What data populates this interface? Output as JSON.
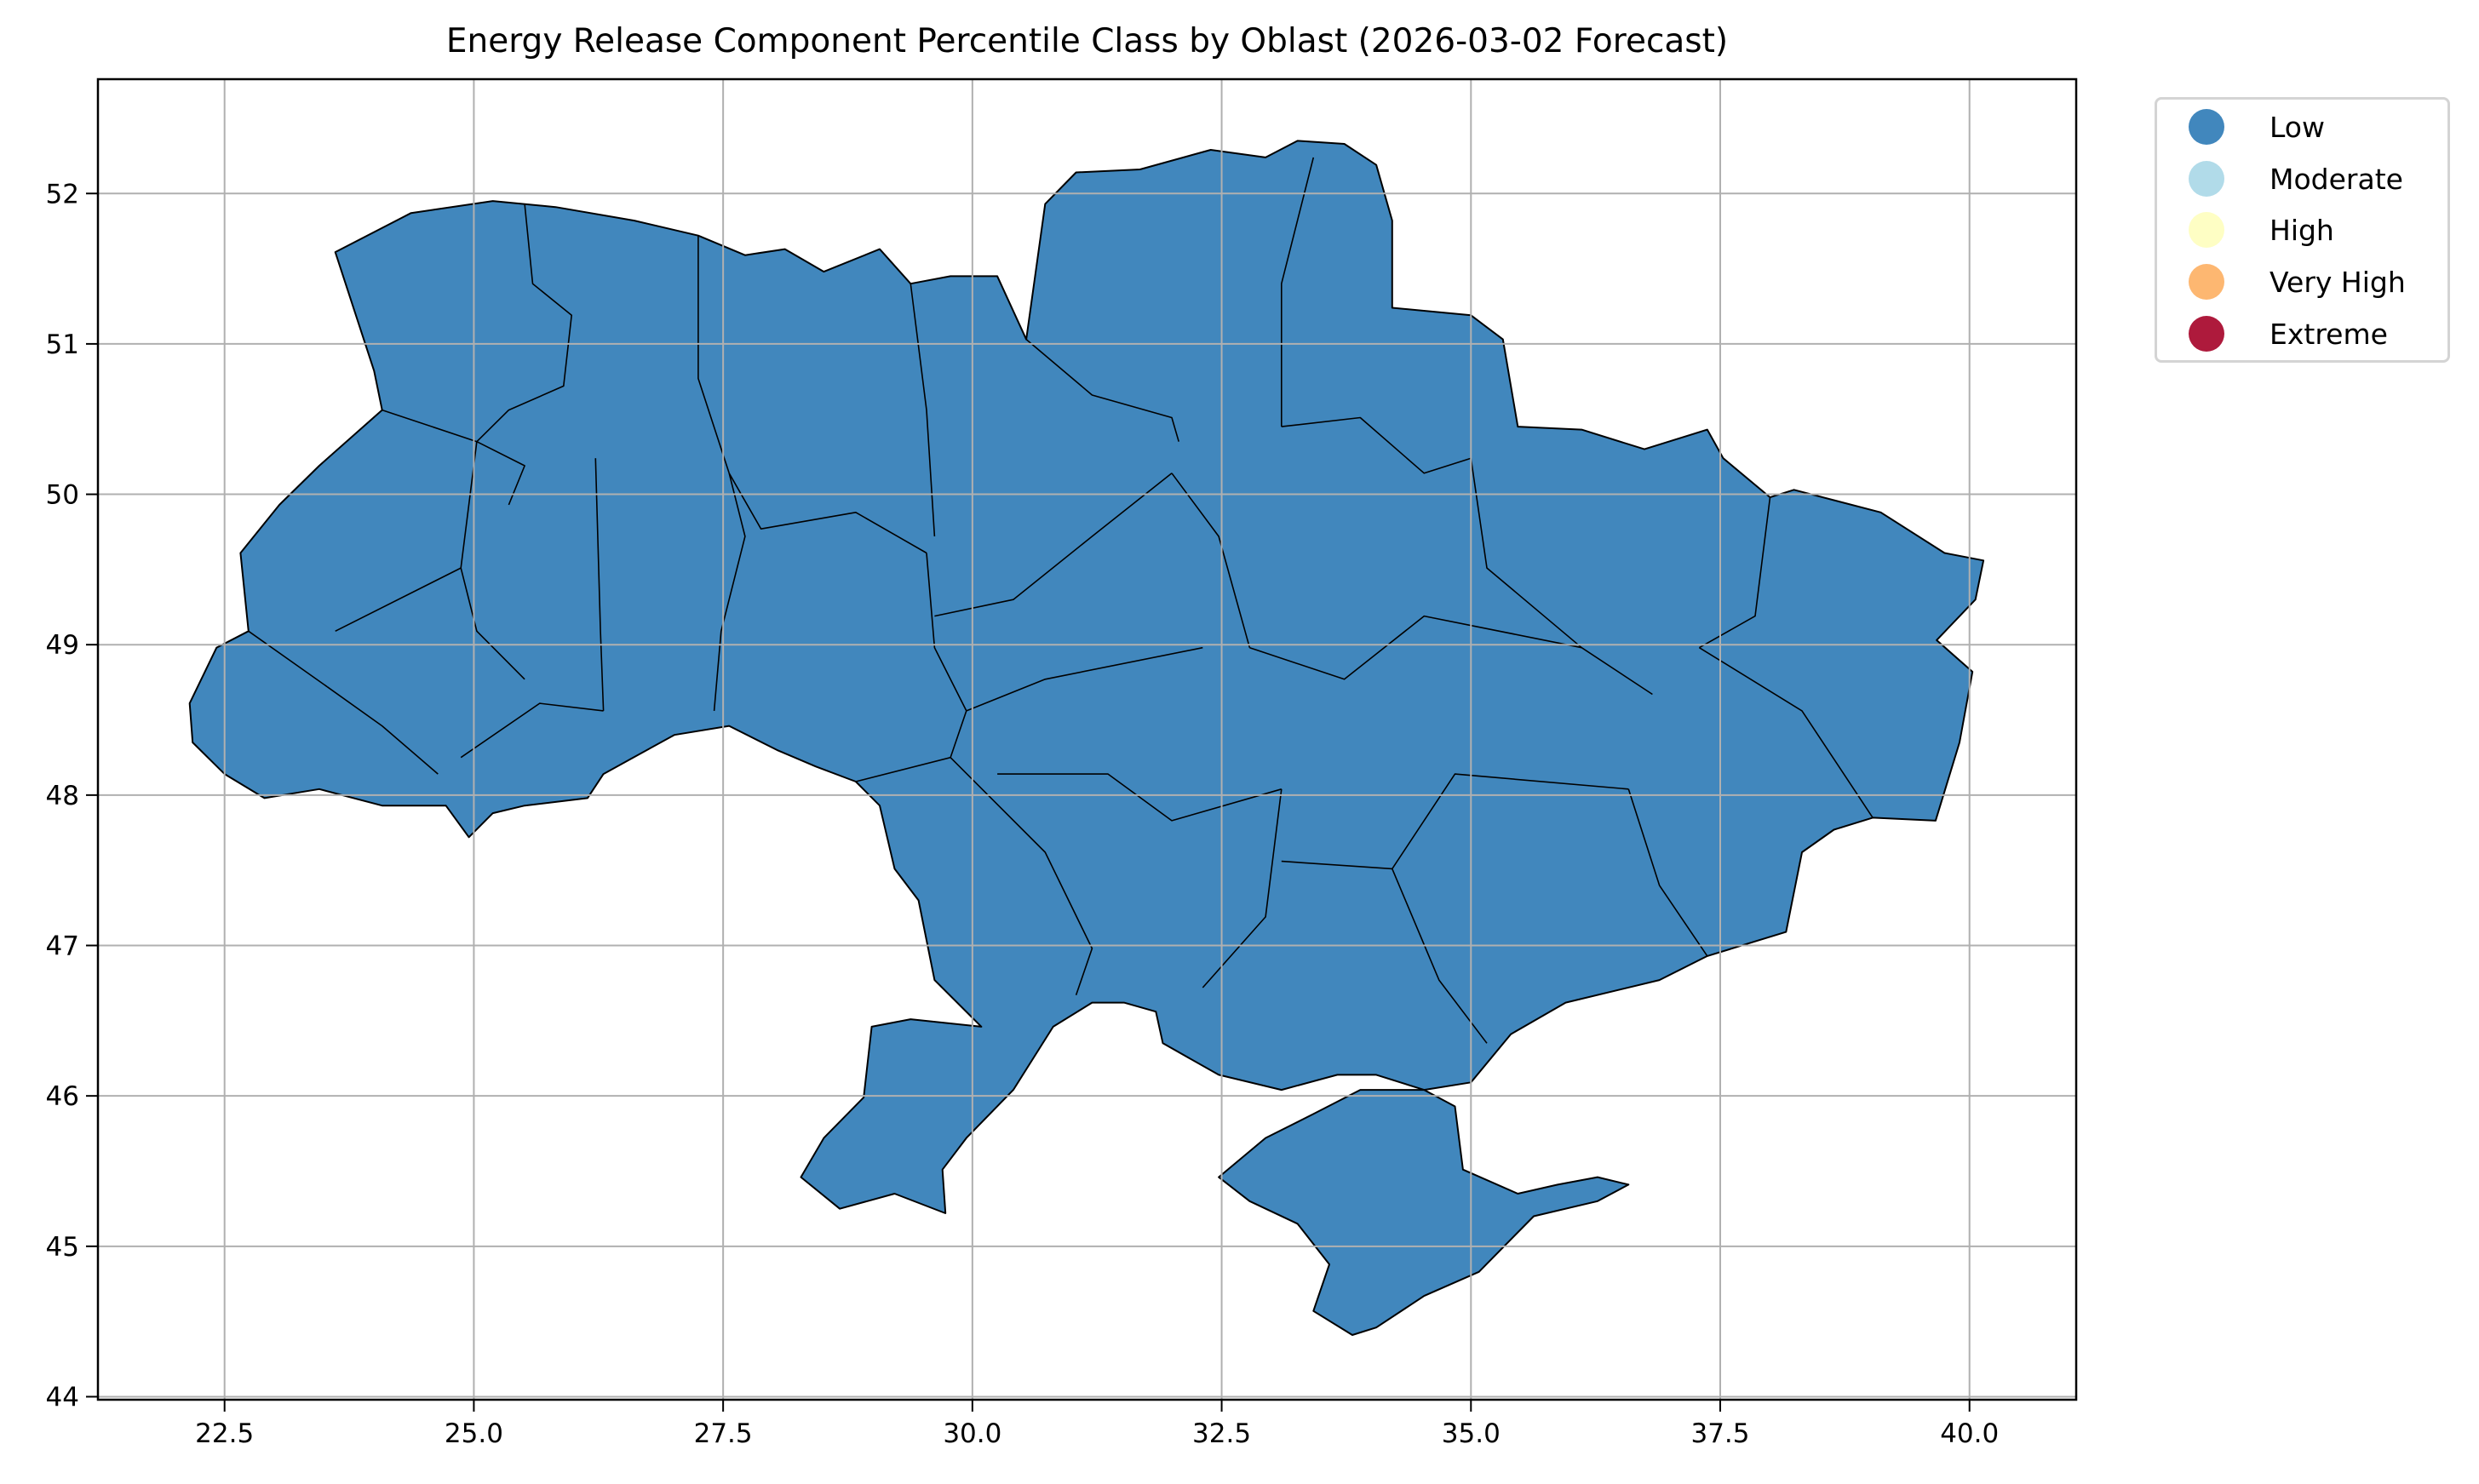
{
  "chart_data": {
    "type": "choropleth",
    "title": "Energy Release Component Percentile Class by Oblast (2026-03-02 Forecast)",
    "xlabel": "",
    "ylabel": "",
    "xlim": [
      21.23,
      41.07
    ],
    "ylim": [
      43.98,
      52.76
    ],
    "x_ticks": [
      "22.5",
      "25.0",
      "27.5",
      "30.0",
      "32.5",
      "35.0",
      "37.5",
      "40.0"
    ],
    "y_ticks": [
      "44",
      "45",
      "46",
      "47",
      "48",
      "49",
      "50",
      "51",
      "52"
    ],
    "grid": true,
    "legend_position": "outside top-right",
    "legend": [
      {
        "label": "Low",
        "color": "#4187bd"
      },
      {
        "label": "Moderate",
        "color": "#b1dbe9"
      },
      {
        "label": "High",
        "color": "#fefec4"
      },
      {
        "label": "Very High",
        "color": "#fdb771"
      },
      {
        "label": "Extreme",
        "color": "#ae1a3c"
      }
    ],
    "all_regions_class": "Low",
    "mainland_outline": [
      [
        23.61,
        51.61
      ],
      [
        24.37,
        51.87
      ],
      [
        25.19,
        51.95
      ],
      [
        25.82,
        51.91
      ],
      [
        26.61,
        51.82
      ],
      [
        27.25,
        51.72
      ],
      [
        27.72,
        51.59
      ],
      [
        28.12,
        51.63
      ],
      [
        28.51,
        51.48
      ],
      [
        29.07,
        51.63
      ],
      [
        29.38,
        51.4
      ],
      [
        29.78,
        51.45
      ],
      [
        30.25,
        51.45
      ],
      [
        30.54,
        51.03
      ],
      [
        30.73,
        51.93
      ],
      [
        31.04,
        52.14
      ],
      [
        31.68,
        52.16
      ],
      [
        32.39,
        52.29
      ],
      [
        32.94,
        52.24
      ],
      [
        33.26,
        52.35
      ],
      [
        33.73,
        52.33
      ],
      [
        34.05,
        52.19
      ],
      [
        34.21,
        51.82
      ],
      [
        34.21,
        51.24
      ],
      [
        35.0,
        51.19
      ],
      [
        35.32,
        51.03
      ],
      [
        35.47,
        50.45
      ],
      [
        36.11,
        50.43
      ],
      [
        36.74,
        50.3
      ],
      [
        37.37,
        50.43
      ],
      [
        37.53,
        50.24
      ],
      [
        38.0,
        49.98
      ],
      [
        38.24,
        50.03
      ],
      [
        39.11,
        49.88
      ],
      [
        39.75,
        49.61
      ],
      [
        40.14,
        49.56
      ],
      [
        40.06,
        49.3
      ],
      [
        39.67,
        49.03
      ],
      [
        40.03,
        48.82
      ],
      [
        39.9,
        48.35
      ],
      [
        39.66,
        47.83
      ],
      [
        39.03,
        47.85
      ],
      [
        38.64,
        47.77
      ],
      [
        38.32,
        47.62
      ],
      [
        38.16,
        47.09
      ],
      [
        37.37,
        46.93
      ],
      [
        36.89,
        46.77
      ],
      [
        35.95,
        46.62
      ],
      [
        35.4,
        46.41
      ],
      [
        35.0,
        46.09
      ],
      [
        34.53,
        46.04
      ],
      [
        34.05,
        46.14
      ],
      [
        33.66,
        46.14
      ],
      [
        33.1,
        46.04
      ],
      [
        32.47,
        46.14
      ],
      [
        31.91,
        46.35
      ],
      [
        31.84,
        46.56
      ],
      [
        31.52,
        46.62
      ],
      [
        31.2,
        46.62
      ],
      [
        30.81,
        46.46
      ],
      [
        30.41,
        46.04
      ],
      [
        29.94,
        45.72
      ],
      [
        29.7,
        45.51
      ],
      [
        29.73,
        45.22
      ],
      [
        29.22,
        45.35
      ],
      [
        28.67,
        45.25
      ],
      [
        28.28,
        45.46
      ],
      [
        28.51,
        45.72
      ],
      [
        28.91,
        45.99
      ],
      [
        28.99,
        46.46
      ],
      [
        29.38,
        46.51
      ],
      [
        30.09,
        46.46
      ],
      [
        29.62,
        46.77
      ],
      [
        29.46,
        47.3
      ],
      [
        29.22,
        47.51
      ],
      [
        29.07,
        47.93
      ],
      [
        28.83,
        48.09
      ],
      [
        28.43,
        48.19
      ],
      [
        28.04,
        48.3
      ],
      [
        27.56,
        48.46
      ],
      [
        27.01,
        48.4
      ],
      [
        26.3,
        48.14
      ],
      [
        26.14,
        47.98
      ],
      [
        25.51,
        47.93
      ],
      [
        25.19,
        47.88
      ],
      [
        24.95,
        47.72
      ],
      [
        24.72,
        47.93
      ],
      [
        24.08,
        47.93
      ],
      [
        23.45,
        48.04
      ],
      [
        22.9,
        47.98
      ],
      [
        22.5,
        48.14
      ],
      [
        22.18,
        48.35
      ],
      [
        22.15,
        48.61
      ],
      [
        22.42,
        48.98
      ],
      [
        22.74,
        49.09
      ],
      [
        22.66,
        49.61
      ],
      [
        23.05,
        49.93
      ],
      [
        23.45,
        50.19
      ],
      [
        24.08,
        50.56
      ],
      [
        24.0,
        50.82
      ]
    ],
    "crimea_outline": [
      [
        32.47,
        45.46
      ],
      [
        32.94,
        45.72
      ],
      [
        33.42,
        45.88
      ],
      [
        33.89,
        46.04
      ],
      [
        34.53,
        46.04
      ],
      [
        34.84,
        45.93
      ],
      [
        34.92,
        45.51
      ],
      [
        35.47,
        45.35
      ],
      [
        35.87,
        45.41
      ],
      [
        36.27,
        45.46
      ],
      [
        36.58,
        45.41
      ],
      [
        36.27,
        45.3
      ],
      [
        35.63,
        45.2
      ],
      [
        35.08,
        44.83
      ],
      [
        34.53,
        44.67
      ],
      [
        34.05,
        44.46
      ],
      [
        33.81,
        44.41
      ],
      [
        33.42,
        44.57
      ],
      [
        33.58,
        44.88
      ],
      [
        33.26,
        45.15
      ],
      [
        32.78,
        45.3
      ]
    ],
    "internal_boundaries": [
      [
        [
          25.51,
          51.93
        ],
        [
          25.59,
          51.4
        ],
        [
          25.98,
          51.19
        ],
        [
          25.9,
          50.72
        ],
        [
          25.35,
          50.56
        ],
        [
          25.03,
          50.35
        ]
      ],
      [
        [
          27.25,
          51.72
        ],
        [
          27.25,
          50.77
        ],
        [
          27.56,
          50.14
        ]
      ],
      [
        [
          24.08,
          50.56
        ],
        [
          25.03,
          50.35
        ],
        [
          25.51,
          50.19
        ],
        [
          25.35,
          49.93
        ]
      ],
      [
        [
          29.38,
          51.4
        ],
        [
          29.54,
          50.56
        ],
        [
          29.62,
          49.72
        ]
      ],
      [
        [
          30.54,
          51.03
        ],
        [
          31.2,
          50.66
        ],
        [
          32.0,
          50.51
        ],
        [
          32.07,
          50.35
        ]
      ],
      [
        [
          33.42,
          52.24
        ],
        [
          33.1,
          51.4
        ],
        [
          33.1,
          50.45
        ]
      ],
      [
        [
          33.1,
          50.45
        ],
        [
          33.89,
          50.51
        ],
        [
          34.53,
          50.14
        ],
        [
          35.0,
          50.24
        ]
      ],
      [
        [
          38.0,
          49.98
        ],
        [
          37.85,
          49.19
        ],
        [
          37.29,
          48.98
        ]
      ],
      [
        [
          37.29,
          48.98
        ],
        [
          38.32,
          48.56
        ],
        [
          39.03,
          47.85
        ]
      ],
      [
        [
          25.03,
          50.35
        ],
        [
          24.87,
          49.51
        ],
        [
          25.03,
          49.09
        ],
        [
          25.51,
          48.77
        ]
      ],
      [
        [
          26.22,
          50.24
        ],
        [
          26.27,
          49.09
        ],
        [
          26.3,
          48.56
        ]
      ],
      [
        [
          27.56,
          50.14
        ],
        [
          27.72,
          49.72
        ],
        [
          27.48,
          49.09
        ],
        [
          27.41,
          48.56
        ]
      ],
      [
        [
          27.56,
          50.14
        ],
        [
          27.88,
          49.77
        ],
        [
          28.83,
          49.88
        ],
        [
          29.54,
          49.61
        ]
      ],
      [
        [
          29.54,
          49.61
        ],
        [
          29.62,
          48.98
        ],
        [
          29.94,
          48.56
        ]
      ],
      [
        [
          29.94,
          48.56
        ],
        [
          30.73,
          48.77
        ],
        [
          32.31,
          48.98
        ]
      ],
      [
        [
          29.62,
          49.19
        ],
        [
          30.41,
          49.3
        ],
        [
          31.2,
          49.72
        ],
        [
          32.0,
          50.14
        ]
      ],
      [
        [
          32.0,
          50.14
        ],
        [
          32.47,
          49.72
        ],
        [
          32.78,
          48.98
        ]
      ],
      [
        [
          32.78,
          48.98
        ],
        [
          33.73,
          48.77
        ],
        [
          34.53,
          49.19
        ],
        [
          36.11,
          48.98
        ]
      ],
      [
        [
          35.0,
          50.24
        ],
        [
          35.16,
          49.51
        ],
        [
          36.11,
          48.98
        ],
        [
          36.82,
          48.67
        ]
      ],
      [
        [
          30.25,
          48.14
        ],
        [
          31.36,
          48.14
        ],
        [
          32.0,
          47.83
        ],
        [
          33.1,
          48.04
        ]
      ],
      [
        [
          29.78,
          48.25
        ],
        [
          30.73,
          47.62
        ],
        [
          31.2,
          46.98
        ],
        [
          31.04,
          46.67
        ]
      ],
      [
        [
          33.1,
          48.04
        ],
        [
          32.94,
          47.19
        ],
        [
          32.31,
          46.72
        ]
      ],
      [
        [
          33.1,
          47.56
        ],
        [
          34.21,
          47.51
        ],
        [
          34.84,
          48.14
        ],
        [
          36.58,
          48.04
        ]
      ],
      [
        [
          34.21,
          47.51
        ],
        [
          34.68,
          46.77
        ],
        [
          35.16,
          46.35
        ]
      ],
      [
        [
          36.58,
          48.04
        ],
        [
          36.89,
          47.4
        ],
        [
          37.37,
          46.93
        ]
      ],
      [
        [
          23.53,
          48.72
        ],
        [
          24.08,
          48.46
        ],
        [
          24.64,
          48.14
        ]
      ],
      [
        [
          22.74,
          49.09
        ],
        [
          23.53,
          48.72
        ]
      ],
      [
        [
          28.83,
          48.09
        ],
        [
          29.78,
          48.25
        ],
        [
          29.94,
          48.56
        ]
      ],
      [
        [
          24.87,
          48.25
        ],
        [
          25.66,
          48.61
        ],
        [
          26.3,
          48.56
        ]
      ],
      [
        [
          23.61,
          49.09
        ],
        [
          24.87,
          49.51
        ]
      ]
    ]
  }
}
